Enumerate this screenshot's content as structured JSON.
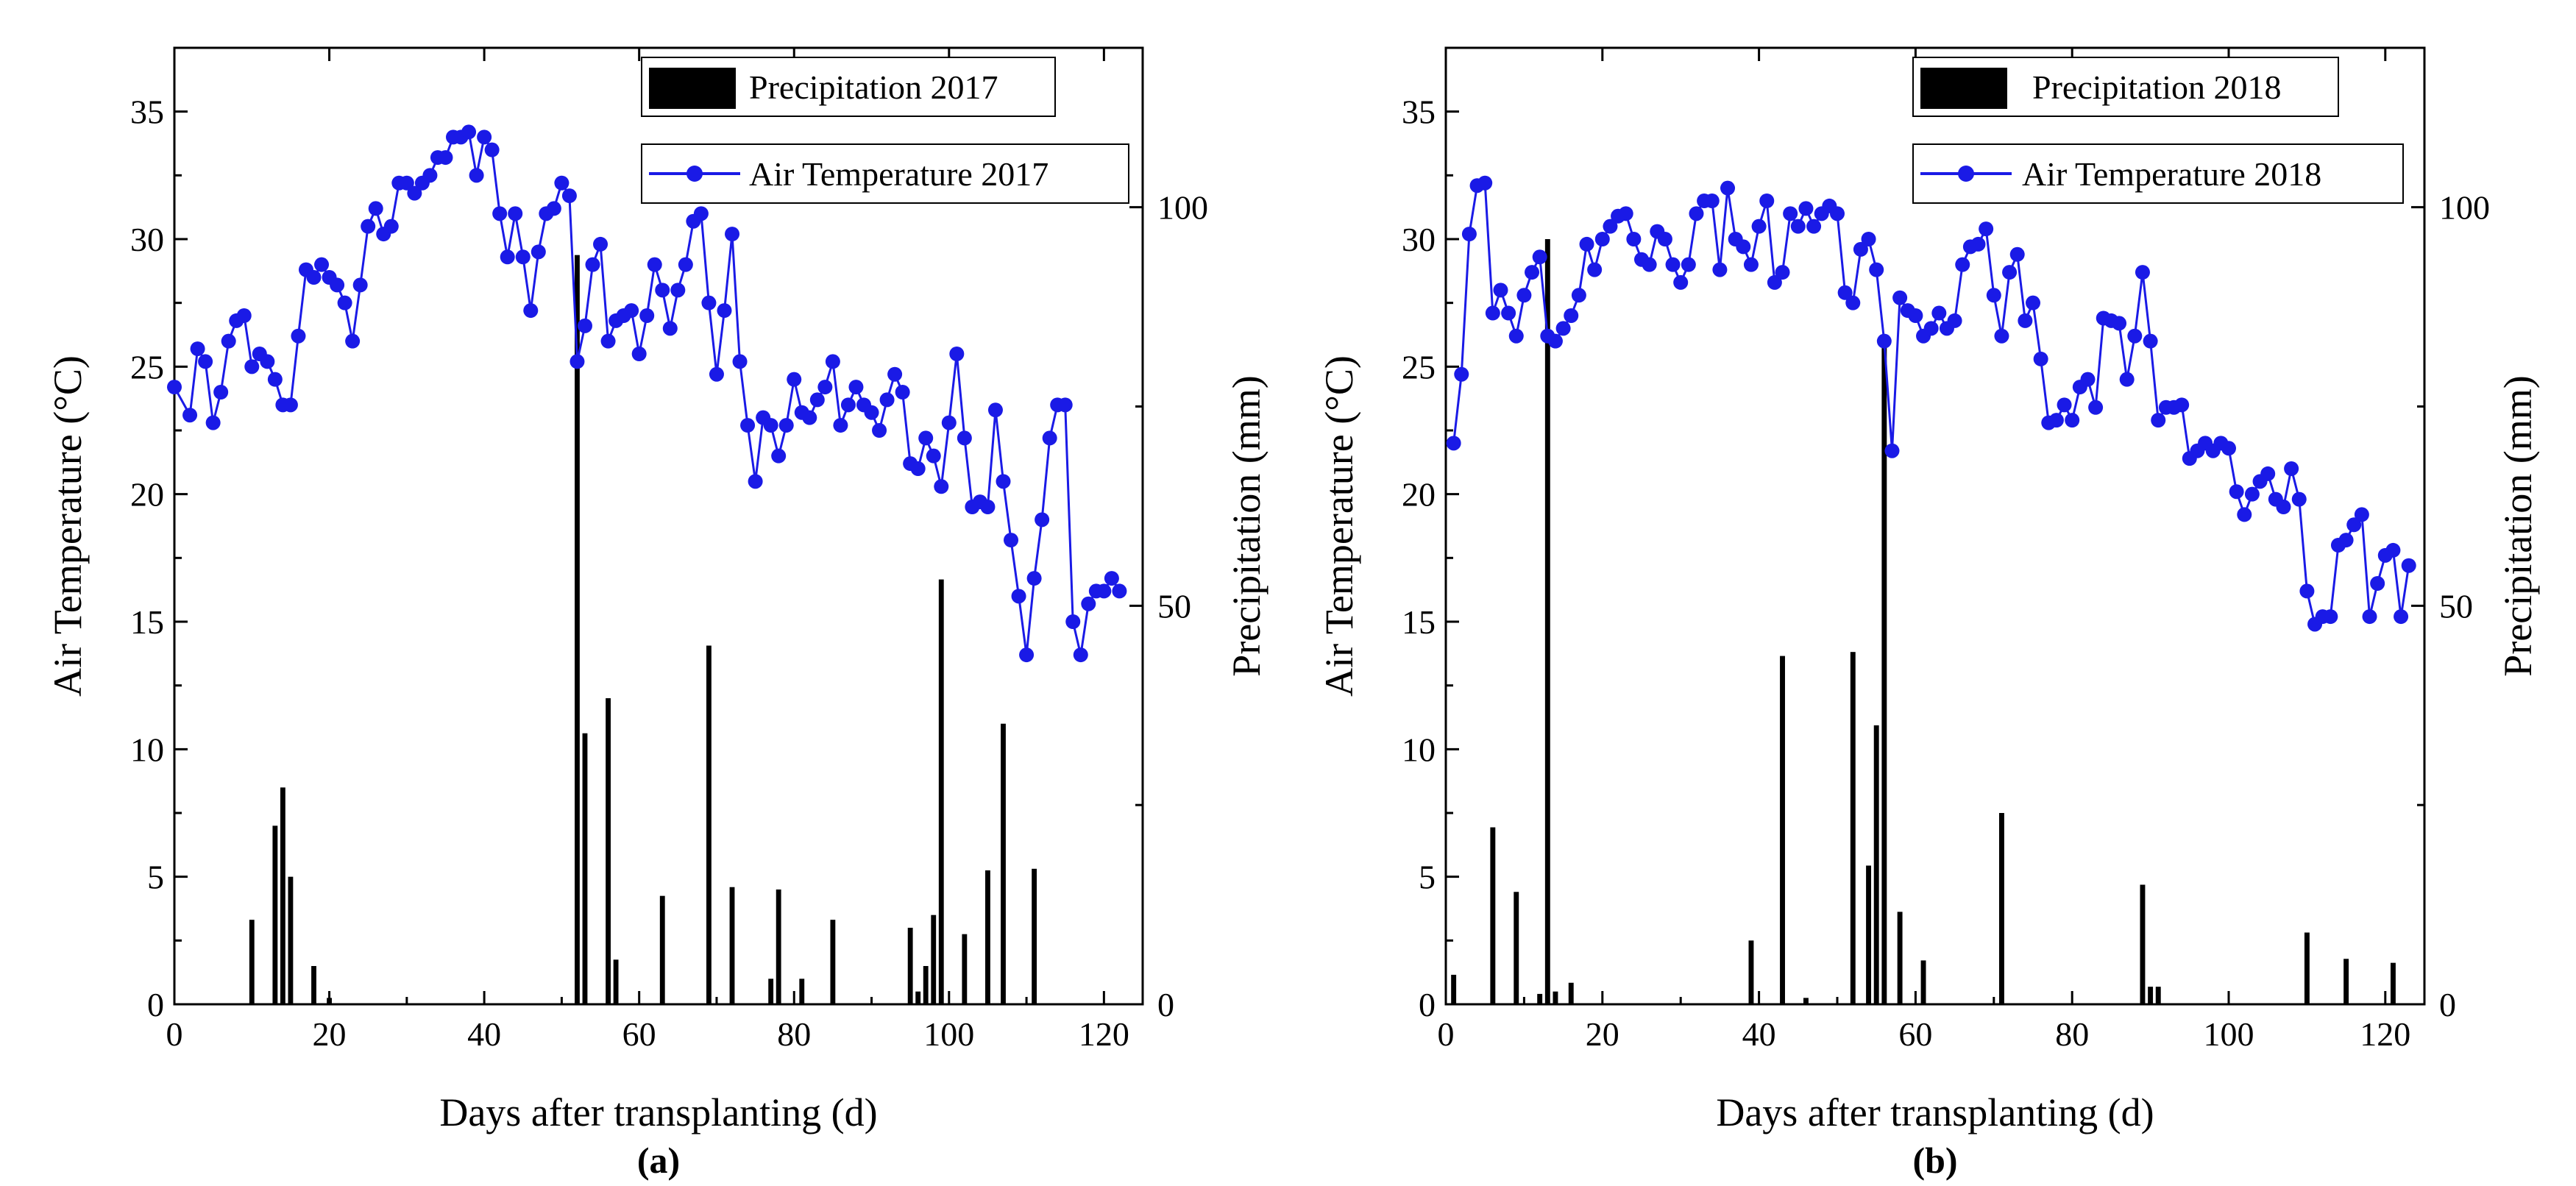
{
  "chart_data": [
    {
      "type": "bar+line",
      "panel_label": "(a)",
      "xlabel": "Days after transplanting (d)",
      "ylabel_left": "Air Temperature (°C)",
      "ylabel_right": "Precipitation (mm)",
      "xlim": [
        0,
        125
      ],
      "ylim_left": [
        0,
        37.5
      ],
      "ylim_right": [
        0,
        120
      ],
      "x_ticks": [
        0,
        20,
        40,
        60,
        80,
        100,
        120
      ],
      "y_ticks_left": [
        0,
        5,
        10,
        15,
        20,
        25,
        30,
        35
      ],
      "y_ticks_right": [
        0,
        50,
        100
      ],
      "legend": {
        "bar": "Precipitation 2017",
        "line": "Air Temperature 2017"
      },
      "temperature": {
        "name": "Air Temperature 2017",
        "color": "#1a1ae6",
        "x": [
          0,
          2,
          3,
          4,
          5,
          6,
          7,
          8,
          9,
          10,
          11,
          12,
          13,
          14,
          15,
          16,
          17,
          18,
          19,
          20,
          21,
          22,
          23,
          24,
          25,
          26,
          27,
          28,
          29,
          30,
          31,
          32,
          33,
          34,
          35,
          36,
          37,
          38,
          39,
          40,
          41,
          42,
          43,
          44,
          45,
          46,
          47,
          48,
          49,
          50,
          51,
          52,
          53,
          54,
          55,
          56,
          57,
          58,
          59,
          60,
          61,
          62,
          63,
          64,
          65,
          66,
          67,
          68,
          69,
          70,
          71,
          72,
          73,
          74,
          75,
          76,
          77,
          78,
          79,
          80,
          81,
          82,
          83,
          84,
          85,
          86,
          87,
          88,
          89,
          90,
          91,
          92,
          93,
          94,
          95,
          96,
          97,
          98,
          99,
          100,
          101,
          102,
          103,
          104,
          105,
          106,
          107,
          108,
          109,
          110,
          111,
          112,
          113,
          114,
          115,
          116,
          117,
          118,
          119,
          120,
          121,
          122
        ],
        "y": [
          24.2,
          23.1,
          25.7,
          25.2,
          22.8,
          24,
          26,
          26.8,
          27,
          25,
          25.5,
          25.2,
          24.5,
          23.5,
          23.5,
          26.2,
          28.8,
          28.5,
          29,
          28.5,
          28.2,
          27.5,
          26,
          28.2,
          30.5,
          31.2,
          30.2,
          30.5,
          32.2,
          32.2,
          31.8,
          32.2,
          32.5,
          33.2,
          33.2,
          34,
          34,
          34.2,
          32.5,
          34,
          33.5,
          31,
          29.3,
          31,
          29.3,
          27.2,
          29.5,
          31,
          31.2,
          32.2,
          31.7,
          25.2,
          26.6,
          29,
          29.8,
          26,
          26.8,
          27,
          27.2,
          25.5,
          27,
          29,
          28,
          26.5,
          28,
          29,
          30.7,
          31,
          27.5,
          24.7,
          27.2,
          30.2,
          25.2,
          22.7,
          20.5,
          23,
          22.7,
          21.5,
          22.7,
          24.5,
          23.2,
          23,
          23.7,
          24.2,
          25.2,
          22.7,
          23.5,
          24.2,
          23.5,
          23.2,
          22.5,
          23.7,
          24.7,
          24,
          21.2,
          21,
          22.2,
          21.5,
          20.3,
          22.8,
          25.5,
          22.2,
          19.5,
          19.7,
          19.5,
          23.3,
          20.5,
          18.2,
          16,
          13.7,
          16.7,
          19,
          22.2,
          23.5,
          23.5,
          15,
          13.7,
          15.7,
          16.2,
          16.2,
          16.7,
          16.2
        ]
      },
      "precipitation": {
        "name": "Precipitation 2017",
        "x": [
          10,
          13,
          14,
          15,
          18,
          20,
          52,
          53,
          56,
          57,
          63,
          69,
          72,
          77,
          78,
          81,
          85,
          95,
          96,
          97,
          98,
          99,
          102,
          105,
          107,
          111
        ],
        "y": [
          10.6,
          22.4,
          27.2,
          16,
          4.8,
          0.8,
          94,
          34,
          38.4,
          5.6,
          13.6,
          45,
          14.7,
          3.2,
          14.4,
          3.2,
          10.6,
          9.6,
          1.6,
          4.8,
          11.2,
          53.3,
          8.8,
          16.8,
          35.2,
          17
        ]
      }
    },
    {
      "type": "bar+line",
      "panel_label": "(b)",
      "xlabel": "Days after transplanting (d)",
      "ylabel_left": "Air Temperature (°C)",
      "ylabel_right": "Precipitation (mm)",
      "xlim": [
        0,
        125
      ],
      "ylim_left": [
        0,
        37.5
      ],
      "ylim_right": [
        0,
        120
      ],
      "x_ticks": [
        0,
        20,
        40,
        60,
        80,
        100,
        120
      ],
      "y_ticks_left": [
        0,
        5,
        10,
        15,
        20,
        25,
        30,
        35
      ],
      "y_ticks_right": [
        0,
        50,
        100
      ],
      "legend": {
        "bar": "Precipitation 2018",
        "line": "Air Temperature 2018"
      },
      "temperature": {
        "name": "Air Temperature 2018",
        "color": "#1a1ae6",
        "x": [
          1,
          2,
          3,
          4,
          5,
          6,
          7,
          8,
          9,
          10,
          11,
          12,
          13,
          14,
          15,
          16,
          17,
          18,
          19,
          20,
          21,
          22,
          23,
          24,
          25,
          26,
          27,
          28,
          29,
          30,
          31,
          32,
          33,
          34,
          35,
          36,
          37,
          38,
          39,
          40,
          41,
          42,
          43,
          44,
          45,
          46,
          47,
          48,
          49,
          50,
          51,
          52,
          53,
          54,
          55,
          56,
          57,
          58,
          59,
          60,
          61,
          62,
          63,
          64,
          65,
          66,
          67,
          68,
          69,
          70,
          71,
          72,
          73,
          74,
          75,
          76,
          77,
          78,
          79,
          80,
          81,
          82,
          83,
          84,
          85,
          86,
          87,
          88,
          89,
          90,
          91,
          92,
          93,
          94,
          95,
          96,
          97,
          98,
          99,
          100,
          101,
          102,
          103,
          104,
          105,
          106,
          107,
          108,
          109,
          110,
          111,
          112,
          113,
          114,
          115,
          116,
          117,
          118,
          119,
          120,
          121,
          122,
          123
        ],
        "y": [
          22,
          24.7,
          30.2,
          32.1,
          32.2,
          27.1,
          28,
          27.1,
          26.2,
          27.8,
          28.7,
          29.3,
          26.2,
          26,
          26.5,
          27,
          27.8,
          29.8,
          28.8,
          30,
          30.5,
          30.9,
          31,
          30,
          29.2,
          29,
          30.3,
          30,
          29,
          28.3,
          29,
          31,
          31.5,
          31.5,
          28.8,
          32,
          30,
          29.7,
          29,
          30.5,
          31.5,
          28.3,
          28.7,
          31,
          30.5,
          31.2,
          30.5,
          31,
          31.3,
          31,
          27.9,
          27.5,
          29.6,
          30,
          28.8,
          26,
          21.7,
          27.7,
          27.2,
          27,
          26.2,
          26.5,
          27.1,
          26.5,
          26.8,
          29,
          29.7,
          29.8,
          30.4,
          27.8,
          26.2,
          28.7,
          29.4,
          26.8,
          27.5,
          25.3,
          22.8,
          22.9,
          23.5,
          22.9,
          24.2,
          24.5,
          23.4,
          26.9,
          26.8,
          26.7,
          24.5,
          26.2,
          28.7,
          26,
          22.9,
          23.4,
          23.4,
          23.5,
          21.4,
          21.7,
          22,
          21.7,
          22,
          21.8,
          20.1,
          19.2,
          20,
          20.5,
          20.8,
          19.8,
          19.5,
          21,
          19.8,
          16.2,
          14.9,
          15.2,
          15.2,
          18,
          18.2,
          18.8,
          19.2,
          15.2,
          16.5,
          17.6,
          17.8,
          15.2,
          17.2
        ]
      },
      "precipitation": {
        "name": "Precipitation 2018",
        "x": [
          1,
          6,
          9,
          12,
          13,
          14,
          16,
          39,
          43,
          46,
          52,
          54,
          55,
          56,
          58,
          61,
          71,
          89,
          90,
          91,
          110,
          115,
          121
        ],
        "y": [
          3.7,
          22.2,
          14.1,
          1.3,
          96,
          1.6,
          2.7,
          8,
          43.7,
          0.8,
          44.2,
          17.4,
          35,
          82.6,
          11.6,
          5.5,
          24,
          15,
          2.2,
          2.2,
          9,
          5.7,
          5.2
        ]
      }
    }
  ]
}
